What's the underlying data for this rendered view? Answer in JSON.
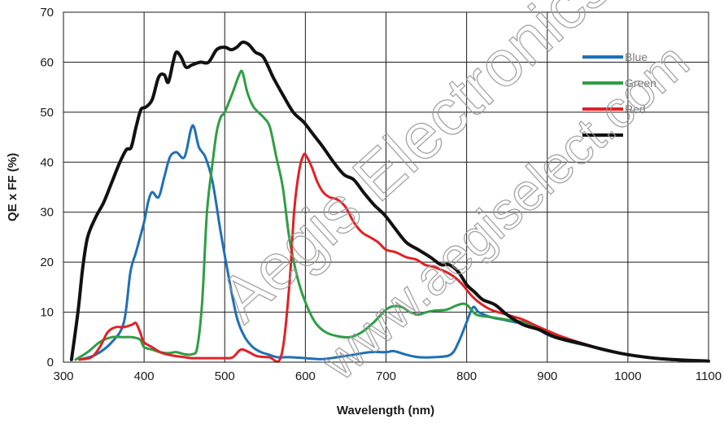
{
  "chart_data": {
    "type": "line",
    "title": "",
    "xlabel": "Wavelength (nm)",
    "ylabel": "QE x FF (%)",
    "xlim": [
      300,
      1100
    ],
    "ylim": [
      0,
      70
    ],
    "x_ticks": [
      "300",
      "400",
      "500",
      "600",
      "700",
      "800",
      "900",
      "1000",
      "1100"
    ],
    "y_ticks": [
      "0",
      "10",
      "20",
      "30",
      "40",
      "50",
      "60",
      "70"
    ],
    "grid": true,
    "legend_position": "top-right",
    "series": [
      {
        "name": "Blue",
        "color": "#1f6fb8",
        "points": [
          [
            320,
            0.5
          ],
          [
            340,
            1.5
          ],
          [
            360,
            4
          ],
          [
            375,
            8
          ],
          [
            383,
            18
          ],
          [
            390,
            22
          ],
          [
            400,
            28
          ],
          [
            405,
            32
          ],
          [
            410,
            34
          ],
          [
            418,
            33
          ],
          [
            425,
            37
          ],
          [
            432,
            41
          ],
          [
            440,
            42
          ],
          [
            450,
            41
          ],
          [
            458,
            46.5
          ],
          [
            462,
            47
          ],
          [
            468,
            43
          ],
          [
            476,
            41
          ],
          [
            485,
            36
          ],
          [
            495,
            26
          ],
          [
            505,
            17
          ],
          [
            515,
            9
          ],
          [
            525,
            5
          ],
          [
            535,
            3
          ],
          [
            545,
            2
          ],
          [
            555,
            1.5
          ],
          [
            565,
            1
          ],
          [
            580,
            1
          ],
          [
            600,
            0.8
          ],
          [
            620,
            0.6
          ],
          [
            640,
            1
          ],
          [
            660,
            1.5
          ],
          [
            680,
            2
          ],
          [
            700,
            2
          ],
          [
            710,
            2.2
          ],
          [
            725,
            1.5
          ],
          [
            740,
            1
          ],
          [
            760,
            1
          ],
          [
            780,
            1.5
          ],
          [
            790,
            4
          ],
          [
            800,
            8
          ],
          [
            808,
            11
          ],
          [
            815,
            10
          ],
          [
            830,
            9
          ],
          [
            845,
            8.5
          ],
          [
            860,
            8
          ],
          [
            880,
            7.5
          ],
          [
            900,
            5.5
          ],
          [
            930,
            4
          ],
          [
            960,
            3
          ],
          [
            1000,
            1.5
          ],
          [
            1050,
            0.5
          ],
          [
            1100,
            0.2
          ]
        ]
      },
      {
        "name": "Green",
        "color": "#2e9e44",
        "points": [
          [
            315,
            0.5
          ],
          [
            330,
            2
          ],
          [
            345,
            4
          ],
          [
            360,
            5
          ],
          [
            375,
            5
          ],
          [
            385,
            5
          ],
          [
            395,
            4.5
          ],
          [
            400,
            3
          ],
          [
            410,
            2.5
          ],
          [
            420,
            2
          ],
          [
            430,
            1.8
          ],
          [
            440,
            2
          ],
          [
            450,
            1.6
          ],
          [
            460,
            1.6
          ],
          [
            466,
            3
          ],
          [
            472,
            12
          ],
          [
            478,
            30
          ],
          [
            485,
            40
          ],
          [
            490,
            46
          ],
          [
            495,
            49
          ],
          [
            500,
            50
          ],
          [
            510,
            54
          ],
          [
            518,
            57.5
          ],
          [
            522,
            58
          ],
          [
            528,
            54
          ],
          [
            536,
            51
          ],
          [
            548,
            49
          ],
          [
            556,
            47
          ],
          [
            564,
            41
          ],
          [
            572,
            35
          ],
          [
            580,
            25
          ],
          [
            590,
            17
          ],
          [
            600,
            12
          ],
          [
            612,
            8
          ],
          [
            625,
            6
          ],
          [
            640,
            5.2
          ],
          [
            655,
            5
          ],
          [
            670,
            6
          ],
          [
            685,
            8
          ],
          [
            700,
            10.5
          ],
          [
            710,
            11.2
          ],
          [
            720,
            11
          ],
          [
            730,
            10
          ],
          [
            740,
            9.5
          ],
          [
            750,
            10
          ],
          [
            760,
            10.3
          ],
          [
            775,
            10.5
          ],
          [
            790,
            11.5
          ],
          [
            800,
            11.5
          ],
          [
            812,
            9.5
          ],
          [
            830,
            9
          ],
          [
            850,
            8.5
          ],
          [
            870,
            8
          ],
          [
            890,
            7
          ],
          [
            920,
            4.5
          ],
          [
            960,
            3
          ],
          [
            1000,
            1.5
          ],
          [
            1050,
            0.5
          ],
          [
            1100,
            0.2
          ]
        ]
      },
      {
        "name": "Red",
        "color": "#e02126",
        "points": [
          [
            320,
            0.5
          ],
          [
            335,
            1
          ],
          [
            345,
            3
          ],
          [
            355,
            6
          ],
          [
            365,
            7
          ],
          [
            375,
            7
          ],
          [
            385,
            7.5
          ],
          [
            390,
            7.8
          ],
          [
            395,
            6
          ],
          [
            400,
            4
          ],
          [
            410,
            3
          ],
          [
            420,
            2
          ],
          [
            430,
            1.5
          ],
          [
            440,
            1.2
          ],
          [
            450,
            1
          ],
          [
            460,
            0.8
          ],
          [
            480,
            0.8
          ],
          [
            500,
            0.8
          ],
          [
            510,
            1
          ],
          [
            520,
            2.5
          ],
          [
            530,
            2
          ],
          [
            540,
            1.2
          ],
          [
            555,
            1
          ],
          [
            570,
            1.2
          ],
          [
            580,
            15
          ],
          [
            586,
            30
          ],
          [
            592,
            38
          ],
          [
            598,
            41.5
          ],
          [
            602,
            41
          ],
          [
            608,
            39
          ],
          [
            615,
            36
          ],
          [
            622,
            34
          ],
          [
            630,
            33
          ],
          [
            640,
            32.5
          ],
          [
            650,
            31
          ],
          [
            660,
            28
          ],
          [
            670,
            26
          ],
          [
            680,
            25
          ],
          [
            690,
            24
          ],
          [
            700,
            22.5
          ],
          [
            712,
            22
          ],
          [
            725,
            21
          ],
          [
            738,
            20.5
          ],
          [
            748,
            19.5
          ],
          [
            760,
            19
          ],
          [
            775,
            18
          ],
          [
            785,
            17
          ],
          [
            795,
            15.5
          ],
          [
            805,
            13.5
          ],
          [
            815,
            12
          ],
          [
            830,
            10.5
          ],
          [
            850,
            9.5
          ],
          [
            870,
            8.5
          ],
          [
            890,
            7
          ],
          [
            920,
            5
          ],
          [
            960,
            3
          ],
          [
            1000,
            1.5
          ],
          [
            1050,
            0.5
          ],
          [
            1100,
            0.2
          ]
        ]
      },
      {
        "name": "",
        "color": "#111111",
        "points": [
          [
            310,
            0.5
          ],
          [
            318,
            10
          ],
          [
            324,
            19
          ],
          [
            330,
            25
          ],
          [
            340,
            29
          ],
          [
            350,
            32
          ],
          [
            360,
            36
          ],
          [
            370,
            40
          ],
          [
            378,
            42.5
          ],
          [
            384,
            43
          ],
          [
            390,
            47
          ],
          [
            396,
            50.5
          ],
          [
            402,
            51
          ],
          [
            410,
            52.5
          ],
          [
            418,
            57
          ],
          [
            425,
            57.5
          ],
          [
            430,
            56
          ],
          [
            436,
            60
          ],
          [
            440,
            62
          ],
          [
            446,
            61
          ],
          [
            452,
            59
          ],
          [
            460,
            59.5
          ],
          [
            470,
            60
          ],
          [
            480,
            60
          ],
          [
            490,
            62.5
          ],
          [
            500,
            63
          ],
          [
            508,
            62.5
          ],
          [
            515,
            63
          ],
          [
            522,
            64
          ],
          [
            530,
            63.5
          ],
          [
            538,
            62
          ],
          [
            548,
            61
          ],
          [
            560,
            57
          ],
          [
            572,
            53.5
          ],
          [
            585,
            50
          ],
          [
            598,
            48
          ],
          [
            610,
            45.5
          ],
          [
            622,
            43
          ],
          [
            635,
            40
          ],
          [
            648,
            37.5
          ],
          [
            660,
            36.5
          ],
          [
            672,
            34
          ],
          [
            685,
            31.5
          ],
          [
            698,
            29.5
          ],
          [
            710,
            27
          ],
          [
            725,
            24
          ],
          [
            740,
            22.5
          ],
          [
            755,
            21
          ],
          [
            768,
            19.5
          ],
          [
            778,
            19.5
          ],
          [
            790,
            18
          ],
          [
            800,
            15.5
          ],
          [
            810,
            14
          ],
          [
            820,
            12.5
          ],
          [
            835,
            11.5
          ],
          [
            850,
            9.5
          ],
          [
            870,
            7.5
          ],
          [
            890,
            6.5
          ],
          [
            910,
            5
          ],
          [
            940,
            3.8
          ],
          [
            970,
            2.5
          ],
          [
            1000,
            1.5
          ],
          [
            1040,
            0.7
          ],
          [
            1100,
            0.2
          ]
        ]
      }
    ]
  },
  "watermark": {
    "line1": "Aegis Electronics",
    "line2": "www.aegiselect.com"
  }
}
